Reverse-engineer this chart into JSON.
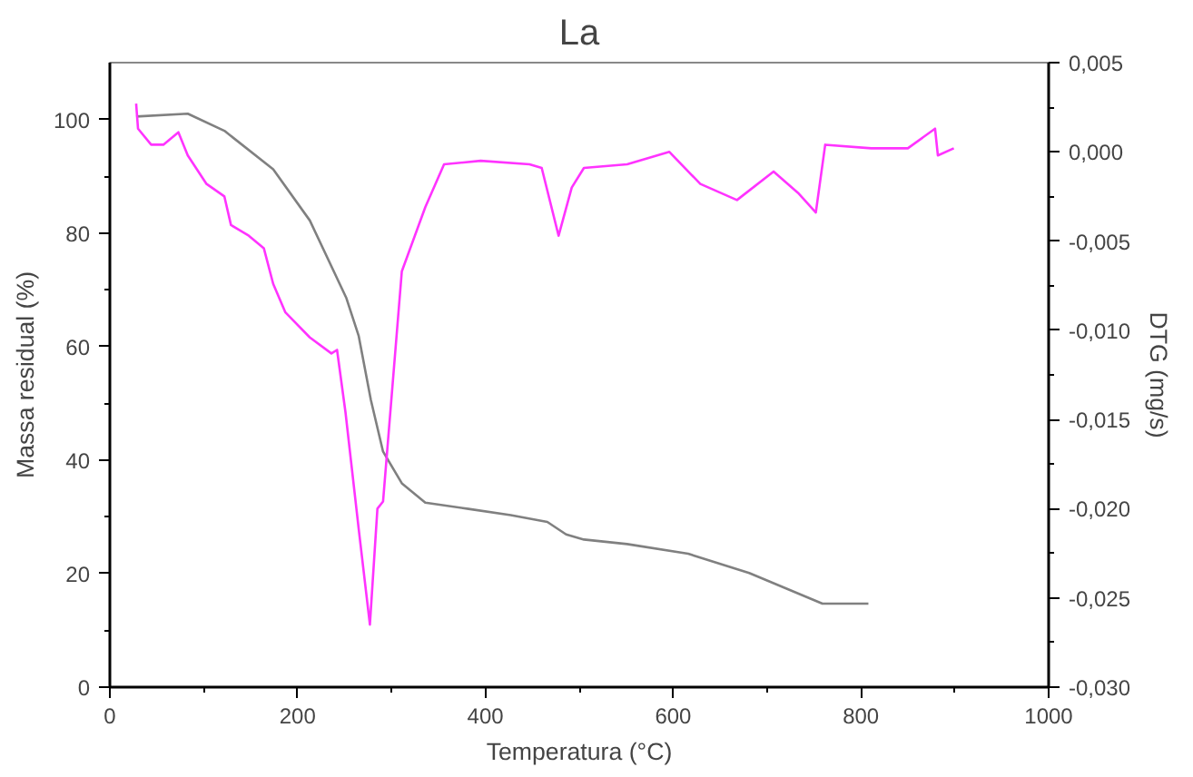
{
  "chart_data": {
    "type": "line",
    "title": "La",
    "xlabel": "Temperatura (°C)",
    "ylabel": "Massa residual (%)",
    "y2label": "DTG (mg/s)",
    "xlim": [
      0,
      1000
    ],
    "xticks": [
      0,
      200,
      400,
      600,
      800,
      1000
    ],
    "ylim": [
      0,
      110
    ],
    "yticks": [
      0,
      20,
      40,
      60,
      80,
      100
    ],
    "y2lim": [
      -0.03,
      0.005
    ],
    "y2ticks": [
      {
        "value": -0.03,
        "label": "-0,030"
      },
      {
        "value": -0.025,
        "label": "-0,025"
      },
      {
        "value": -0.02,
        "label": "-0,020"
      },
      {
        "value": -0.015,
        "label": "-0,015"
      },
      {
        "value": -0.01,
        "label": "-0,010"
      },
      {
        "value": -0.005,
        "label": "-0,005"
      },
      {
        "value": 0.0,
        "label": "0,000"
      },
      {
        "value": 0.005,
        "label": "0,005"
      }
    ],
    "grid": false,
    "line_style": "solid",
    "series": [
      {
        "color": "#808080",
        "x": [
          28,
          83,
          122,
          174,
          213,
          252,
          265,
          278,
          291,
          311,
          336,
          382,
          427,
          466,
          486,
          505,
          551,
          616,
          681,
          759,
          808
        ],
        "values": [
          100.5,
          101,
          98,
          91.2,
          82.2,
          68.5,
          61.9,
          50.6,
          41.5,
          35.9,
          32.5,
          31.4,
          30.3,
          29.1,
          26.9,
          26,
          25.2,
          23.5,
          20.1,
          14.7,
          14.7
        ]
      },
      {
        "color": "#ff33ff",
        "axis": "y2",
        "x": [
          28,
          30,
          44,
          57,
          73,
          83,
          103,
          122,
          129,
          148,
          164,
          174,
          187,
          213,
          236,
          242,
          251,
          265,
          277,
          285,
          291,
          311,
          336,
          356,
          395,
          447,
          460,
          478,
          492,
          505,
          551,
          596,
          629,
          668,
          707,
          733,
          752,
          762,
          811,
          850,
          879,
          882,
          899
        ],
        "values": [
          0.0027,
          0.0013,
          0.0004,
          0.0004,
          0.0011,
          -0.0002,
          -0.0018,
          -0.0025,
          -0.0041,
          -0.0047,
          -0.0054,
          -0.0074,
          -0.009,
          -0.0104,
          -0.0113,
          -0.0111,
          -0.0146,
          -0.0211,
          -0.0265,
          -0.02,
          -0.0196,
          -0.0067,
          -0.0031,
          -0.0007,
          -0.0005,
          -0.0007,
          -0.0009,
          -0.0047,
          -0.002,
          -0.0009,
          -0.0007,
          0.0,
          -0.0018,
          -0.0027,
          -0.0011,
          -0.0023,
          -0.0034,
          0.0004,
          0.0002,
          0.0002,
          0.0013,
          -0.0002,
          0.0002
        ]
      }
    ]
  }
}
